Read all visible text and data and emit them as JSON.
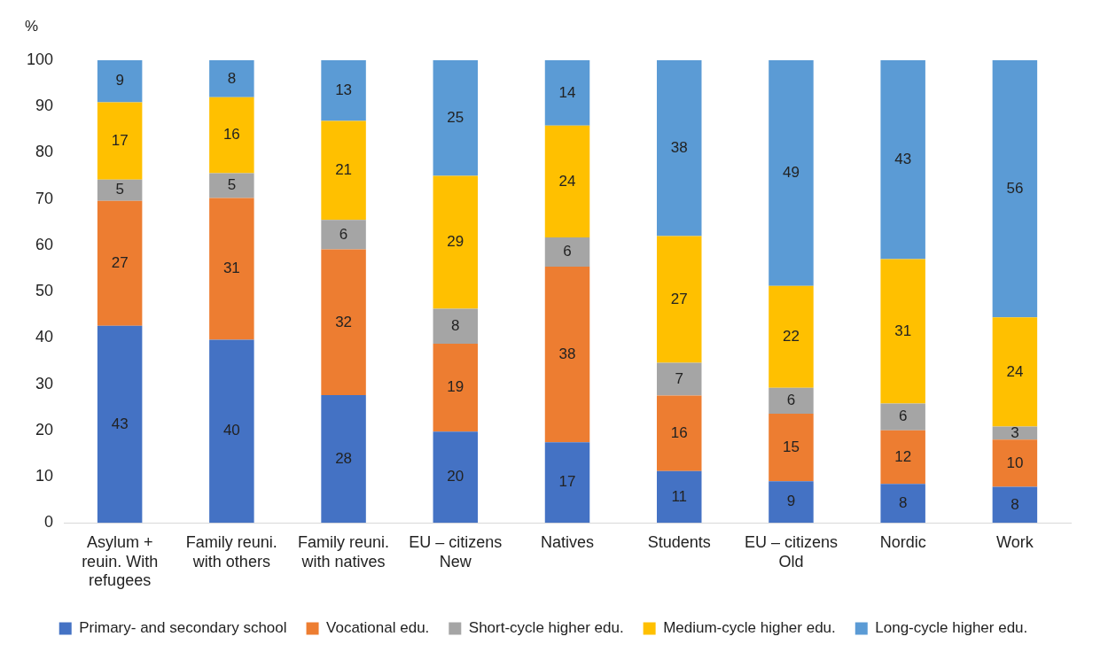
{
  "chart_data": {
    "type": "bar",
    "stacked": true,
    "ylabel": "%",
    "categories": [
      "Asylum + reuin. With refugees",
      "Family reuni. with others",
      "Family reuni. with natives",
      "EU – citizens New",
      "Natives",
      "Students",
      "EU – citizens Old",
      "Nordic",
      "Work"
    ],
    "series": [
      {
        "name": "Primary- and secondary school",
        "color": "#4472c4",
        "values": [
          42.6,
          39.6,
          27.6,
          19.7,
          17.4,
          11.2,
          9,
          8.4,
          7.8
        ],
        "value_labels": [
          "43",
          "40",
          "28",
          "20",
          "17",
          "11",
          "9",
          "8",
          "8"
        ]
      },
      {
        "name": "Vocational edu.",
        "color": "#ed7d31",
        "values": [
          27,
          30.6,
          31.5,
          19,
          38,
          16.3,
          14.6,
          11.6,
          10.2
        ],
        "value_labels": [
          "27",
          "31",
          "32",
          "19",
          "38",
          "16",
          "15",
          "12",
          "10"
        ]
      },
      {
        "name": "Short-cycle higher edu.",
        "color": "#a5a5a5",
        "values": [
          4.6,
          5.4,
          6.4,
          7.6,
          6.3,
          7.1,
          5.6,
          5.8,
          2.8
        ],
        "value_labels": [
          "5",
          "5",
          "6",
          "8",
          "6",
          "7",
          "6",
          "6",
          "3"
        ]
      },
      {
        "name": "Medium-cycle higher edu.",
        "color": "#ffc000",
        "values": [
          16.7,
          16.4,
          21.4,
          28.7,
          24.2,
          27.4,
          22,
          31.2,
          23.6
        ],
        "value_labels": [
          "17",
          "16",
          "21",
          "29",
          "24",
          "27",
          "22",
          "31",
          "24"
        ]
      },
      {
        "name": "Long-cycle higher edu.",
        "color": "#5b9bd5",
        "values": [
          9.1,
          8,
          13.1,
          25,
          14.1,
          38,
          48.8,
          43,
          55.6
        ],
        "value_labels": [
          "9",
          "8",
          "13",
          "25",
          "14",
          "38",
          "49",
          "43",
          "56"
        ]
      }
    ],
    "ylim": [
      0,
      100
    ],
    "yticks": [
      0,
      10,
      20,
      30,
      40,
      50,
      60,
      70,
      80,
      90,
      100
    ],
    "grid": false,
    "legend": "bottom"
  }
}
